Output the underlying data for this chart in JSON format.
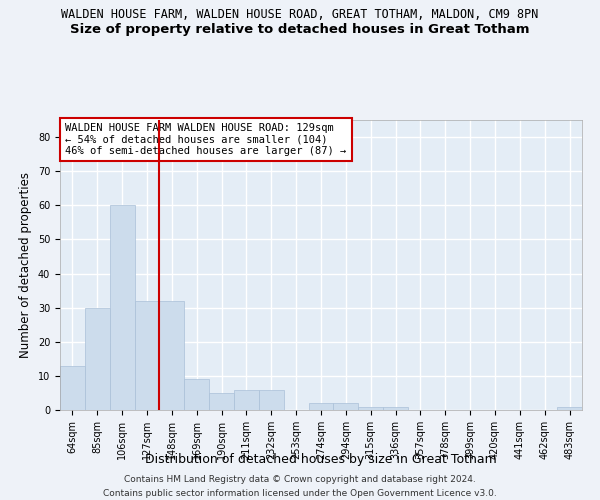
{
  "title1": "WALDEN HOUSE FARM, WALDEN HOUSE ROAD, GREAT TOTHAM, MALDON, CM9 8PN",
  "title2": "Size of property relative to detached houses in Great Totham",
  "xlabel": "Distribution of detached houses by size in Great Totham",
  "ylabel": "Number of detached properties",
  "categories": [
    "64sqm",
    "85sqm",
    "106sqm",
    "127sqm",
    "148sqm",
    "169sqm",
    "190sqm",
    "211sqm",
    "232sqm",
    "253sqm",
    "274sqm",
    "294sqm",
    "315sqm",
    "336sqm",
    "357sqm",
    "378sqm",
    "399sqm",
    "420sqm",
    "441sqm",
    "462sqm",
    "483sqm"
  ],
  "values": [
    13,
    30,
    60,
    32,
    32,
    9,
    5,
    6,
    6,
    0,
    2,
    2,
    1,
    1,
    0,
    0,
    0,
    0,
    0,
    0,
    1
  ],
  "bar_color": "#ccdcec",
  "bar_edge_color": "#aac0d8",
  "vline_color": "#cc0000",
  "annotation_line1": "WALDEN HOUSE FARM WALDEN HOUSE ROAD: 129sqm",
  "annotation_line2": "← 54% of detached houses are smaller (104)",
  "annotation_line3": "46% of semi-detached houses are larger (87) →",
  "annotation_box_color": "#ffffff",
  "annotation_box_edge": "#cc0000",
  "ylim": [
    0,
    85
  ],
  "yticks": [
    0,
    10,
    20,
    30,
    40,
    50,
    60,
    70,
    80
  ],
  "footer1": "Contains HM Land Registry data © Crown copyright and database right 2024.",
  "footer2": "Contains public sector information licensed under the Open Government Licence v3.0.",
  "bg_color": "#eef2f8",
  "plot_bg_color": "#e4edf6",
  "grid_color": "#ffffff",
  "title1_fontsize": 8.5,
  "title2_fontsize": 9.5,
  "axis_label_fontsize": 8.5,
  "tick_fontsize": 7,
  "footer_fontsize": 6.5,
  "annotation_fontsize": 7.5
}
